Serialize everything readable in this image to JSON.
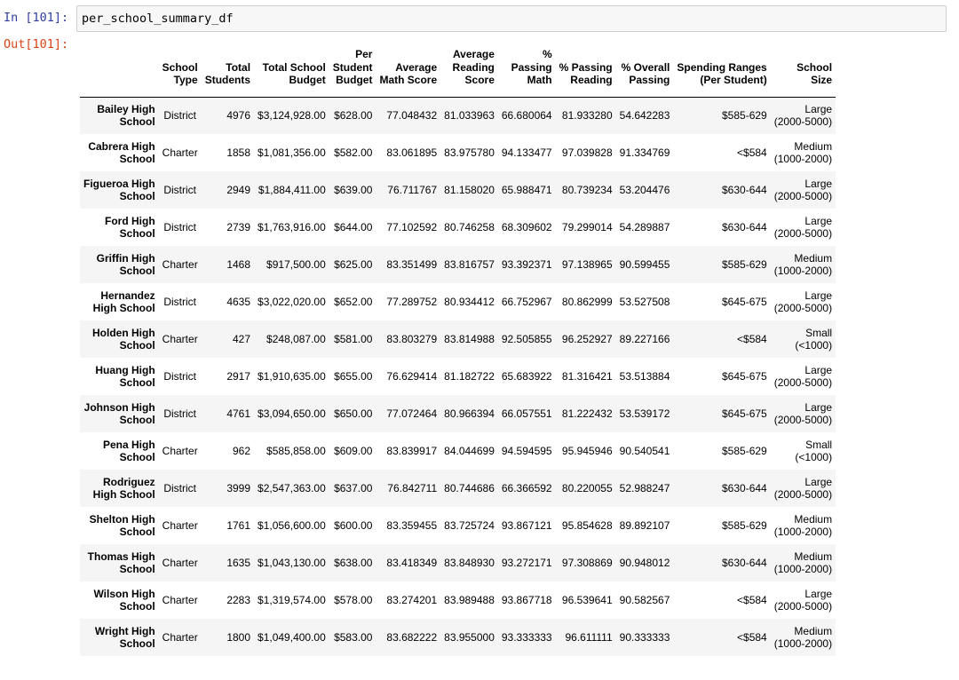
{
  "cell": {
    "in_prompt": "In [101]:",
    "out_prompt": "Out[101]:",
    "code": "per_school_summary_df"
  },
  "table": {
    "columns": [
      [
        "School",
        "Type"
      ],
      [
        "Total",
        "Students"
      ],
      [
        "Total School",
        "Budget"
      ],
      [
        "Per",
        "Student",
        "Budget"
      ],
      [
        "Average",
        "Math Score"
      ],
      [
        "Average",
        "Reading",
        "Score"
      ],
      [
        "%",
        "Passing",
        "Math"
      ],
      [
        "% Passing",
        "Reading"
      ],
      [
        "% Overall",
        "Passing"
      ],
      [
        "Spending Ranges",
        "(Per Student)"
      ],
      [
        "School",
        "Size"
      ]
    ],
    "rows": [
      {
        "index": [
          "Bailey High",
          "School"
        ],
        "cells": [
          "District",
          "4976",
          "$3,124,928.00",
          "$628.00",
          "77.048432",
          "81.033963",
          "66.680064",
          "81.933280",
          "54.642283",
          "$585-629"
        ],
        "size": [
          "Large",
          "(2000-5000)"
        ]
      },
      {
        "index": [
          "Cabrera High",
          "School"
        ],
        "cells": [
          "Charter",
          "1858",
          "$1,081,356.00",
          "$582.00",
          "83.061895",
          "83.975780",
          "94.133477",
          "97.039828",
          "91.334769",
          "<$584"
        ],
        "size": [
          "Medium",
          "(1000-2000)"
        ]
      },
      {
        "index": [
          "Figueroa High",
          "School"
        ],
        "cells": [
          "District",
          "2949",
          "$1,884,411.00",
          "$639.00",
          "76.711767",
          "81.158020",
          "65.988471",
          "80.739234",
          "53.204476",
          "$630-644"
        ],
        "size": [
          "Large",
          "(2000-5000)"
        ]
      },
      {
        "index": [
          "Ford High",
          "School"
        ],
        "cells": [
          "District",
          "2739",
          "$1,763,916.00",
          "$644.00",
          "77.102592",
          "80.746258",
          "68.309602",
          "79.299014",
          "54.289887",
          "$630-644"
        ],
        "size": [
          "Large",
          "(2000-5000)"
        ]
      },
      {
        "index": [
          "Griffin High",
          "School"
        ],
        "cells": [
          "Charter",
          "1468",
          "$917,500.00",
          "$625.00",
          "83.351499",
          "83.816757",
          "93.392371",
          "97.138965",
          "90.599455",
          "$585-629"
        ],
        "size": [
          "Medium",
          "(1000-2000)"
        ]
      },
      {
        "index": [
          "Hernandez",
          "High School"
        ],
        "cells": [
          "District",
          "4635",
          "$3,022,020.00",
          "$652.00",
          "77.289752",
          "80.934412",
          "66.752967",
          "80.862999",
          "53.527508",
          "$645-675"
        ],
        "size": [
          "Large",
          "(2000-5000)"
        ]
      },
      {
        "index": [
          "Holden High",
          "School"
        ],
        "cells": [
          "Charter",
          "427",
          "$248,087.00",
          "$581.00",
          "83.803279",
          "83.814988",
          "92.505855",
          "96.252927",
          "89.227166",
          "<$584"
        ],
        "size": [
          "Small",
          "(<1000)"
        ]
      },
      {
        "index": [
          "Huang High",
          "School"
        ],
        "cells": [
          "District",
          "2917",
          "$1,910,635.00",
          "$655.00",
          "76.629414",
          "81.182722",
          "65.683922",
          "81.316421",
          "53.513884",
          "$645-675"
        ],
        "size": [
          "Large",
          "(2000-5000)"
        ]
      },
      {
        "index": [
          "Johnson High",
          "School"
        ],
        "cells": [
          "District",
          "4761",
          "$3,094,650.00",
          "$650.00",
          "77.072464",
          "80.966394",
          "66.057551",
          "81.222432",
          "53.539172",
          "$645-675"
        ],
        "size": [
          "Large",
          "(2000-5000)"
        ]
      },
      {
        "index": [
          "Pena High",
          "School"
        ],
        "cells": [
          "Charter",
          "962",
          "$585,858.00",
          "$609.00",
          "83.839917",
          "84.044699",
          "94.594595",
          "95.945946",
          "90.540541",
          "$585-629"
        ],
        "size": [
          "Small",
          "(<1000)"
        ]
      },
      {
        "index": [
          "Rodriguez",
          "High School"
        ],
        "cells": [
          "District",
          "3999",
          "$2,547,363.00",
          "$637.00",
          "76.842711",
          "80.744686",
          "66.366592",
          "80.220055",
          "52.988247",
          "$630-644"
        ],
        "size": [
          "Large",
          "(2000-5000)"
        ]
      },
      {
        "index": [
          "Shelton High",
          "School"
        ],
        "cells": [
          "Charter",
          "1761",
          "$1,056,600.00",
          "$600.00",
          "83.359455",
          "83.725724",
          "93.867121",
          "95.854628",
          "89.892107",
          "$585-629"
        ],
        "size": [
          "Medium",
          "(1000-2000)"
        ]
      },
      {
        "index": [
          "Thomas High",
          "School"
        ],
        "cells": [
          "Charter",
          "1635",
          "$1,043,130.00",
          "$638.00",
          "83.418349",
          "83.848930",
          "93.272171",
          "97.308869",
          "90.948012",
          "$630-644"
        ],
        "size": [
          "Medium",
          "(1000-2000)"
        ]
      },
      {
        "index": [
          "Wilson High",
          "School"
        ],
        "cells": [
          "Charter",
          "2283",
          "$1,319,574.00",
          "$578.00",
          "83.274201",
          "83.989488",
          "93.867718",
          "96.539641",
          "90.582567",
          "<$584"
        ],
        "size": [
          "Large",
          "(2000-5000)"
        ]
      },
      {
        "index": [
          "Wright High",
          "School"
        ],
        "cells": [
          "Charter",
          "1800",
          "$1,049,400.00",
          "$583.00",
          "83.682222",
          "83.955000",
          "93.333333",
          "96.611111",
          "90.333333",
          "<$584"
        ],
        "size": [
          "Medium",
          "(1000-2000)"
        ]
      }
    ]
  }
}
